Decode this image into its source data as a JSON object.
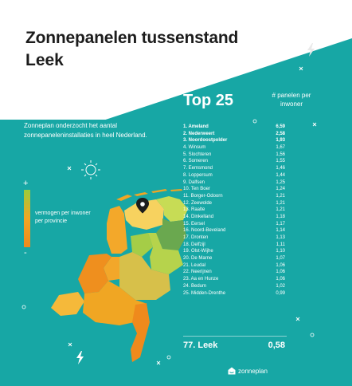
{
  "header": {
    "title": "Zonnepanelen tussenstand",
    "subtitle": "Leek"
  },
  "intro_text": "Zonneplan onderzocht het aantal zonnepaneleninstallaties in heel Nederland.",
  "legend": {
    "plus": "+",
    "minus": "-",
    "label": "vermogen per inwoner per provincie"
  },
  "ranking": {
    "heading": "Top 25",
    "column_header": "# panelen per inwoner",
    "rows": [
      {
        "name": "1. Ameland",
        "value": "6,59"
      },
      {
        "name": "2. Nederweert",
        "value": "2,58"
      },
      {
        "name": "3. Noordoostpolder",
        "value": "1,93"
      },
      {
        "name": "4. Winsum",
        "value": "1,67"
      },
      {
        "name": "5. Slochteren",
        "value": "1,56"
      },
      {
        "name": "6. Someren",
        "value": "1,55"
      },
      {
        "name": "7. Eemsmond",
        "value": "1,46"
      },
      {
        "name": "8. Loppersum",
        "value": "1,44"
      },
      {
        "name": "9. Dalfsen",
        "value": "1,25"
      },
      {
        "name": "10. Ten Boer",
        "value": "1,24"
      },
      {
        "name": "11. Borger-Odoorn",
        "value": "1,21"
      },
      {
        "name": "12. Zeewolde",
        "value": "1,21"
      },
      {
        "name": "13. Raalte",
        "value": "1,21"
      },
      {
        "name": "14. Dinkelland",
        "value": "1,18"
      },
      {
        "name": "15. Eersel",
        "value": "1,17"
      },
      {
        "name": "16. Noord-Beveland",
        "value": "1,14"
      },
      {
        "name": "17. Dronten",
        "value": "1,13"
      },
      {
        "name": "18. Delfzijl",
        "value": "1,11"
      },
      {
        "name": "19. Olst-Wijhe",
        "value": "1,10"
      },
      {
        "name": "20. De Marne",
        "value": "1,07"
      },
      {
        "name": "21. Leudal",
        "value": "1,06"
      },
      {
        "name": "22. Neerijnen",
        "value": "1,06"
      },
      {
        "name": "23. Aa en Hunze",
        "value": "1,06"
      },
      {
        "name": "24. Bedum",
        "value": "1,02"
      },
      {
        "name": "25. Midden-Drenthe",
        "value": "0,99"
      }
    ],
    "final": {
      "name": "77. Leek",
      "value": "0,58"
    }
  },
  "brand": "zonneplan",
  "colors": {
    "background": "#17a7a5",
    "map_high": "#9ccc3b",
    "map_mid": "#f0a623",
    "map_low": "#ef8a1c",
    "highlight": "#6aa84f"
  },
  "icons": [
    "sun-icon",
    "lightning-icon",
    "location-pin-icon",
    "zonneplan-logo-icon"
  ]
}
